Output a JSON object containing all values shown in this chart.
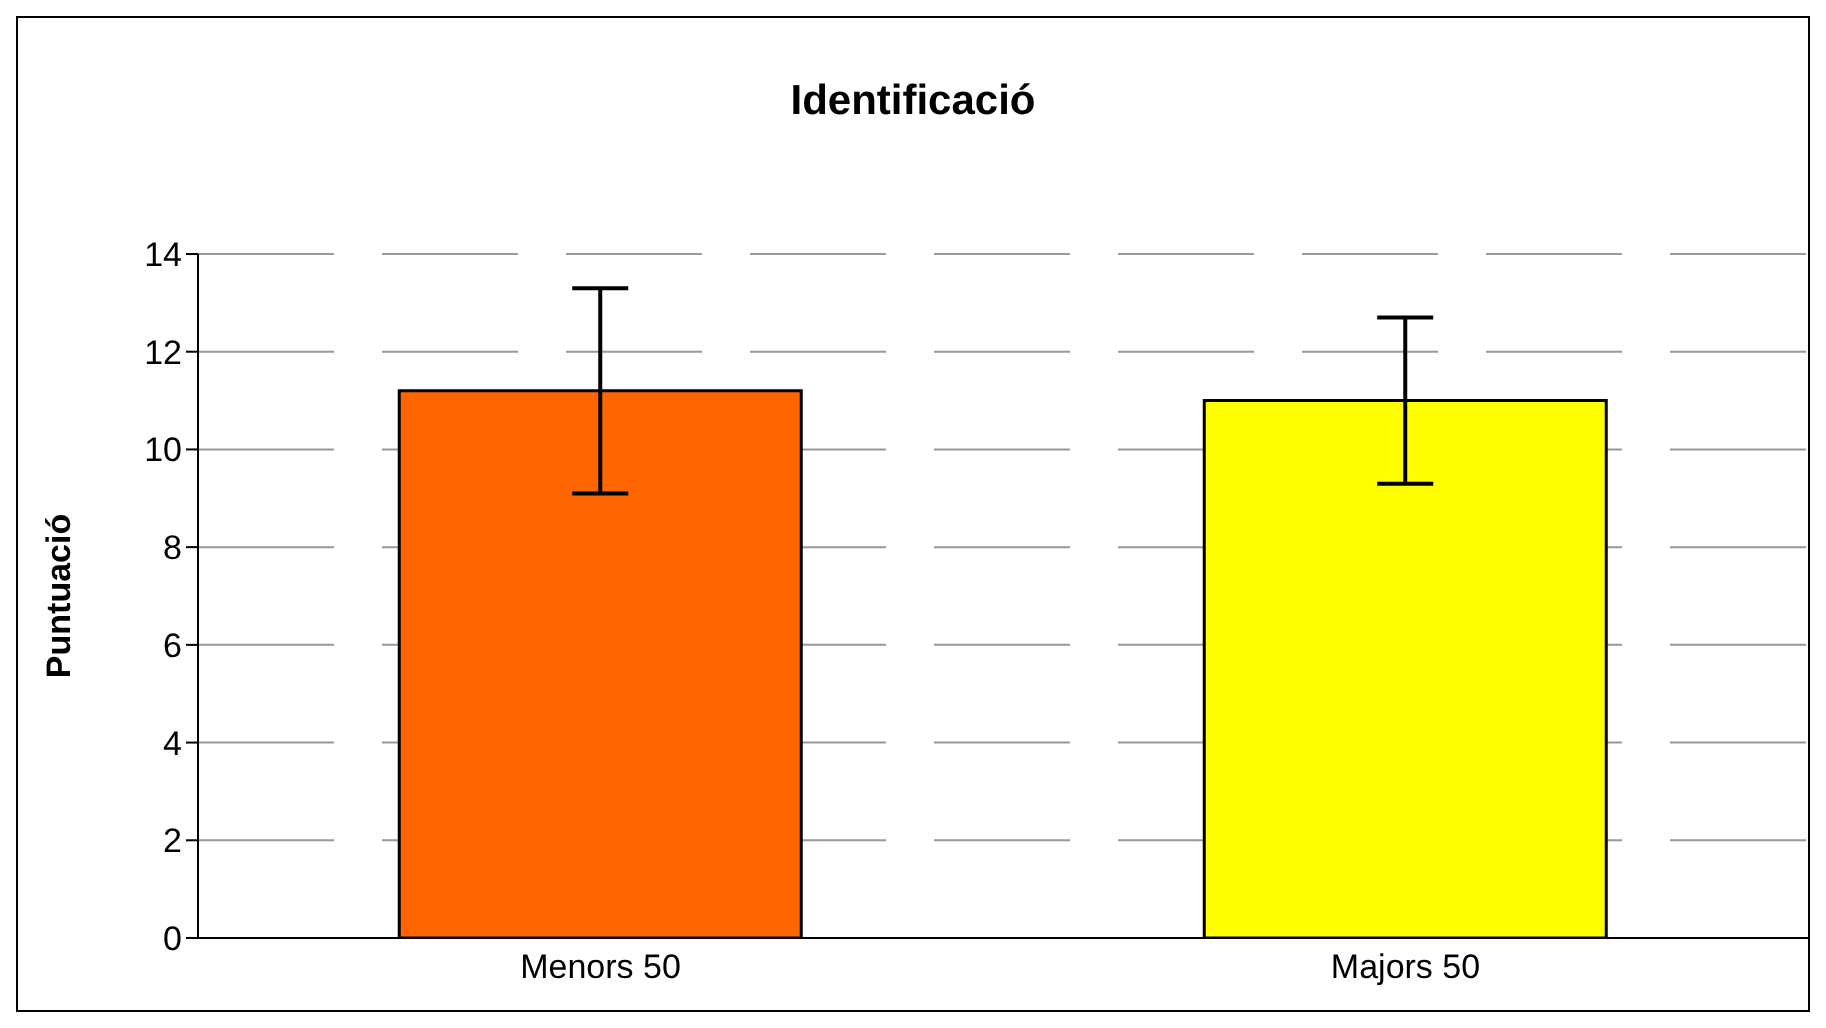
{
  "chart_data": {
    "type": "bar",
    "title": "Identificació",
    "ylabel": "Puntuació",
    "categories": [
      "Menors 50",
      "Majors 50"
    ],
    "values": [
      11.2,
      11.0
    ],
    "colors": [
      "#ff6600",
      "#ffff00"
    ],
    "errors": [
      2.1,
      1.7
    ],
    "ylim": [
      0,
      14
    ],
    "yticks": [
      0,
      2,
      4,
      6,
      8,
      10,
      12,
      14
    ],
    "grid": "y"
  }
}
